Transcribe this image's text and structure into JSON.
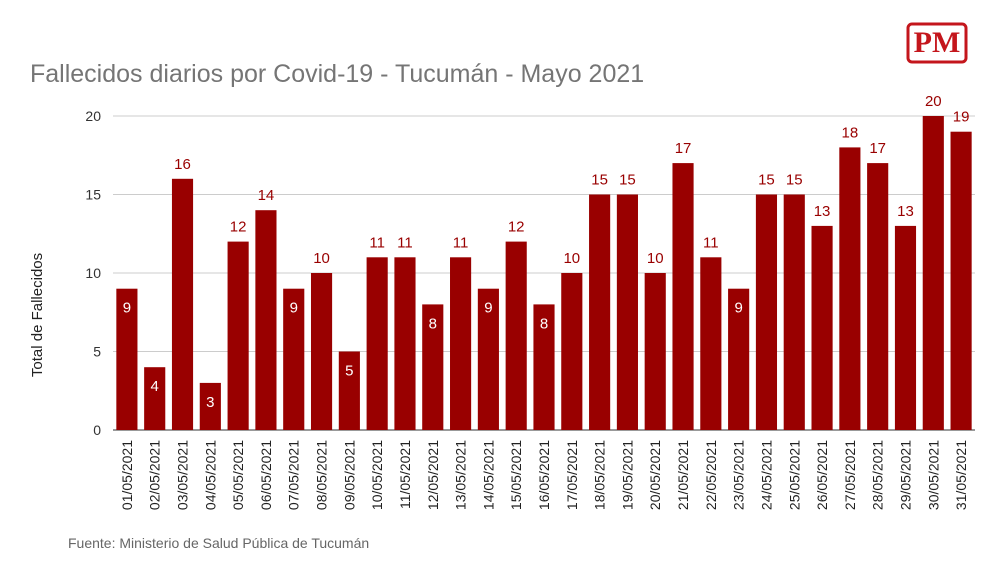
{
  "logo": "PM",
  "chart_data": {
    "type": "bar",
    "title": "Fallecidos diarios por Covid-19 - Tucumán - Mayo 2021",
    "y_label": "Total de Fallecidos",
    "source": "Fuente: Ministerio de Salud Pública de Tucumán",
    "categories": [
      "01/05/2021",
      "02/05/2021",
      "03/05/2021",
      "04/05/2021",
      "05/05/2021",
      "06/05/2021",
      "07/05/2021",
      "08/05/2021",
      "09/05/2021",
      "10/05/2021",
      "11/05/2021",
      "12/05/2021",
      "13/05/2021",
      "14/05/2021",
      "15/05/2021",
      "16/05/2021",
      "17/05/2021",
      "18/05/2021",
      "19/05/2021",
      "20/05/2021",
      "21/05/2021",
      "22/05/2021",
      "23/05/2021",
      "24/05/2021",
      "25/05/2021",
      "26/05/2021",
      "27/05/2021",
      "28/05/2021",
      "29/05/2021",
      "30/05/2021",
      "31/05/2021"
    ],
    "values": [
      9,
      4,
      16,
      3,
      12,
      14,
      9,
      10,
      5,
      11,
      11,
      8,
      11,
      9,
      12,
      8,
      10,
      15,
      15,
      10,
      17,
      11,
      9,
      15,
      15,
      13,
      18,
      17,
      13,
      20,
      19
    ],
    "color": "#990000",
    "ylim": [
      0,
      20
    ],
    "yticks": [
      0,
      5,
      10,
      15,
      20
    ],
    "grid": true
  }
}
